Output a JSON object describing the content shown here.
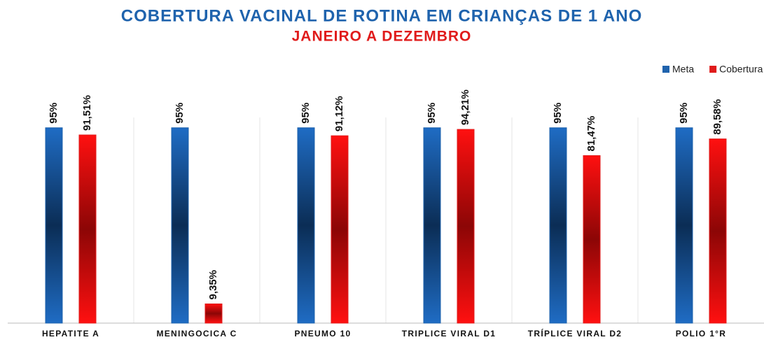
{
  "chart_data": {
    "type": "bar",
    "title": "COBERTURA VACINAL DE ROTINA EM CRIANÇAS DE 1 ANO",
    "subtitle": "JANEIRO A DEZEMBRO",
    "categories": [
      "HEPATITE A",
      "MENINGOCICA C",
      "PNEUMO 10",
      "TRIPLICE VIRAL D1",
      "TRÍPLICE VIRAL D2",
      "POLIO 1°R"
    ],
    "series": [
      {
        "name": "Meta",
        "color": "#1f63ad",
        "values": [
          95,
          95,
          95,
          95,
          95,
          95
        ],
        "value_labels": [
          "95%",
          "95%",
          "95%",
          "95%",
          "95%",
          "95%"
        ]
      },
      {
        "name": "Cobertura",
        "color": "#e01b1b",
        "values": [
          91.51,
          9.35,
          91.12,
          94.21,
          81.47,
          89.58
        ],
        "value_labels": [
          "91,51%",
          "9,35%",
          "91,12%",
          "94,21%",
          "81,47%",
          "89,58%"
        ]
      }
    ],
    "legend": "top-right"
  }
}
